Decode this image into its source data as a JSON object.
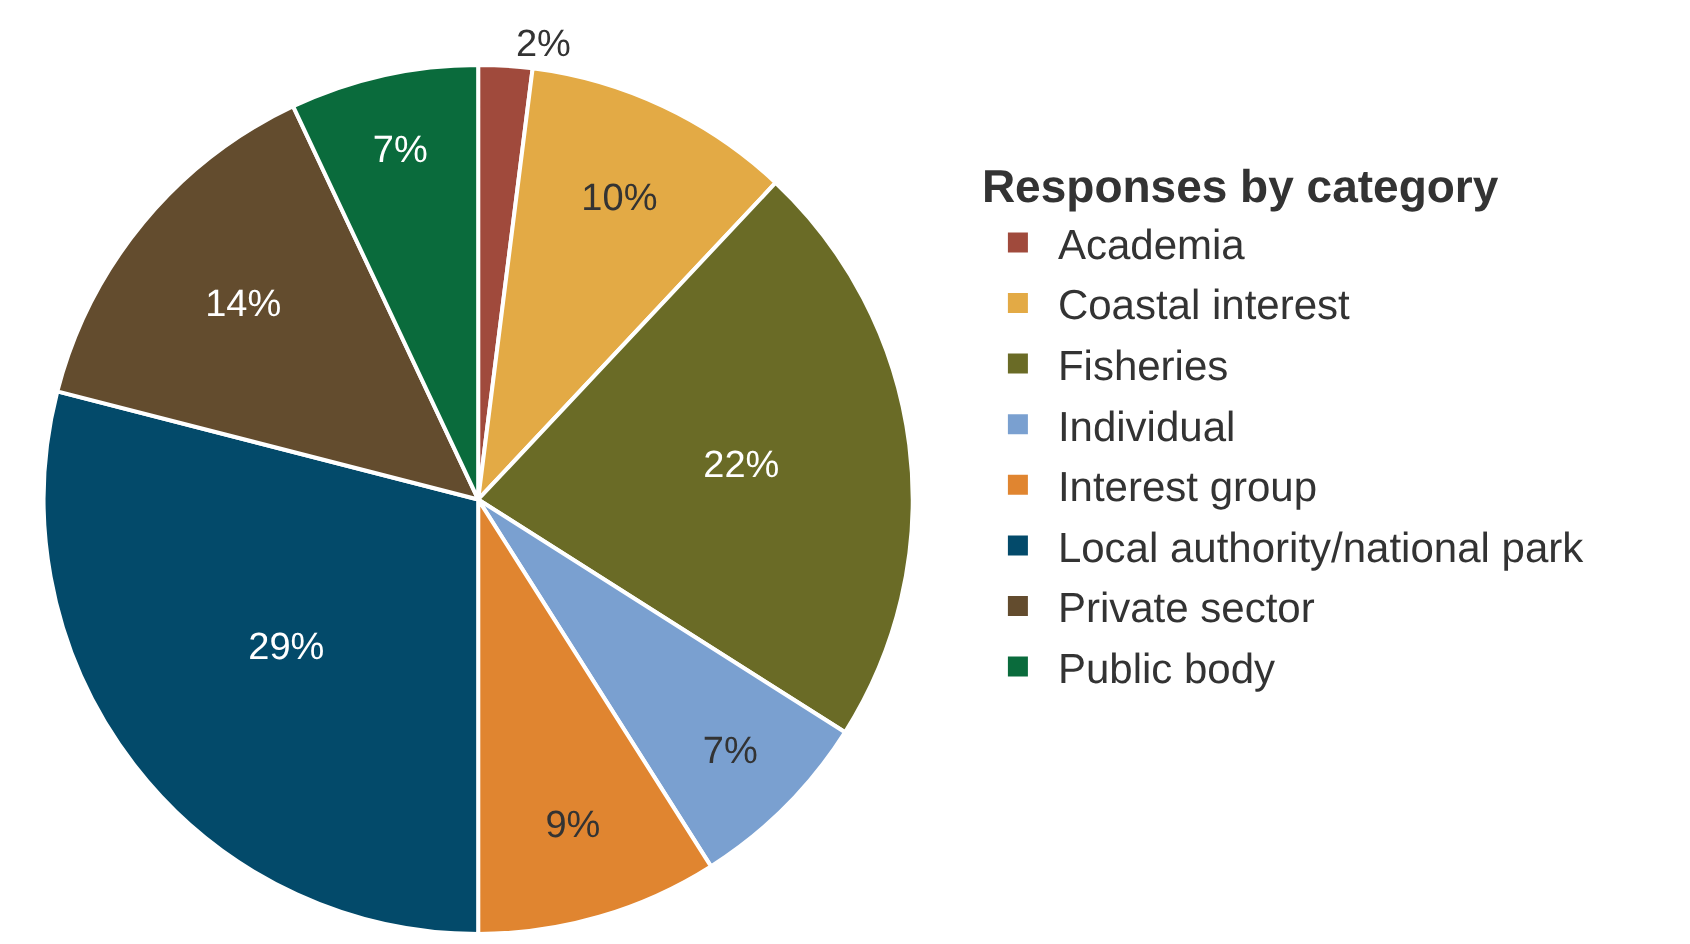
{
  "chart_data": {
    "type": "pie",
    "legend_title": "Responses by category",
    "categories": [
      "Academia",
      "Coastal interest",
      "Fisheries",
      "Individual",
      "Interest group",
      "Local authority/national park",
      "Private sector",
      "Public body"
    ],
    "values": [
      2,
      10,
      22,
      7,
      9,
      29,
      14,
      7
    ],
    "value_labels": [
      "2%",
      "10%",
      "22%",
      "7%",
      "9%",
      "29%",
      "14%",
      "7%"
    ],
    "colors": [
      "#a04a3c",
      "#e3aa45",
      "#6a6b26",
      "#7aa0d0",
      "#e08530",
      "#034a6a",
      "#634c2e",
      "#0a6b3c"
    ],
    "legend": "right"
  }
}
